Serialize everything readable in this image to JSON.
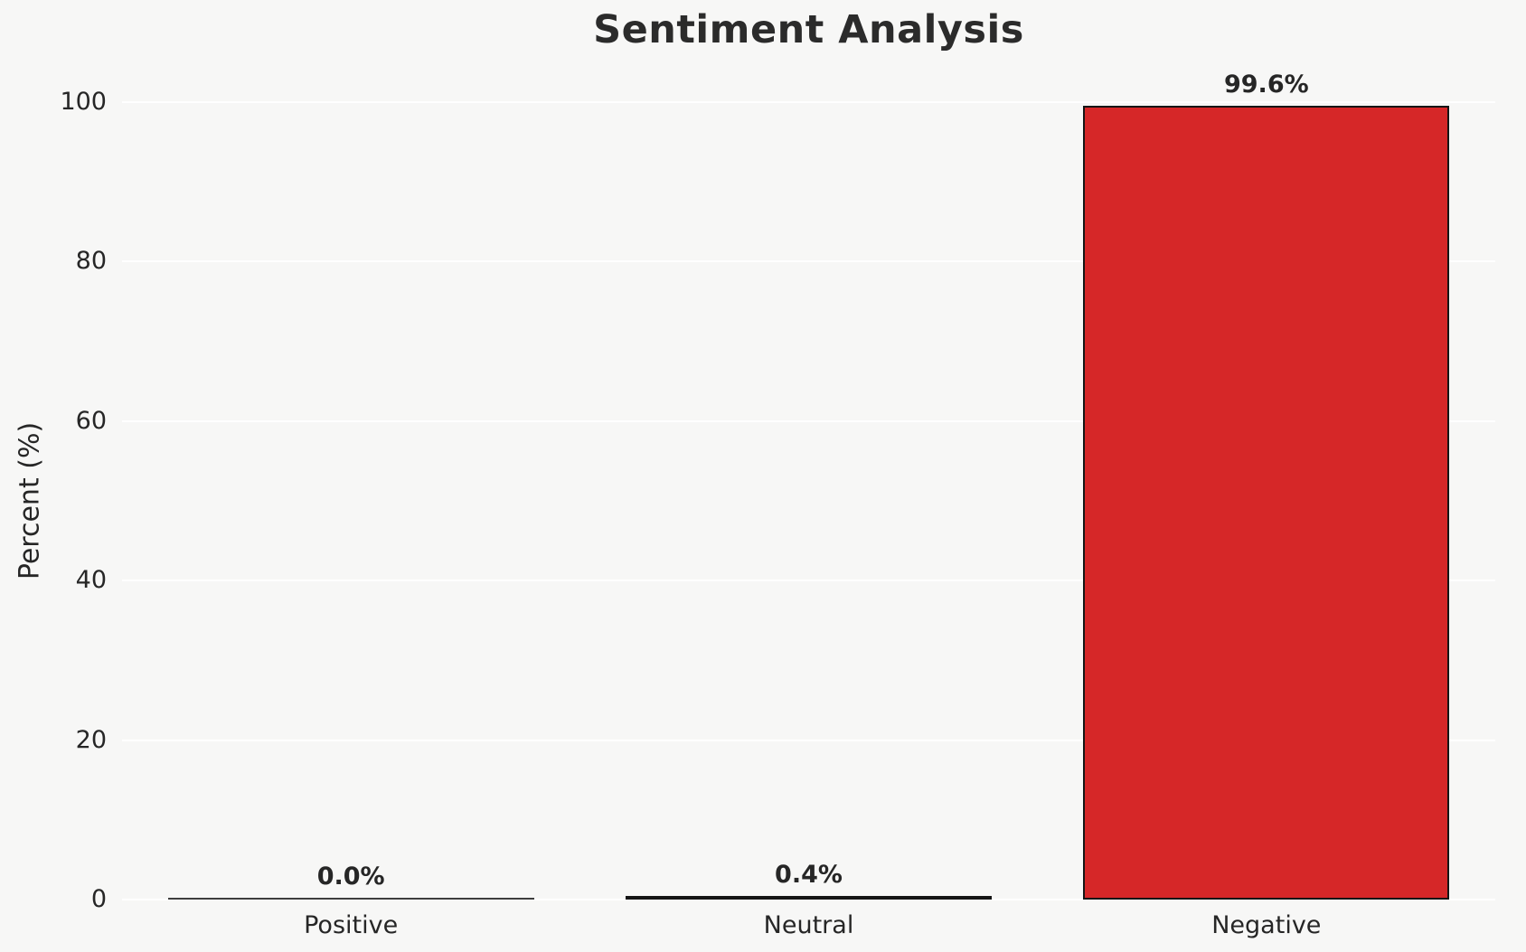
{
  "chart_data": {
    "type": "bar",
    "title": "Sentiment Analysis",
    "xlabel": "",
    "ylabel": "Percent (%)",
    "categories": [
      "Positive",
      "Neutral",
      "Negative"
    ],
    "values": [
      0.0,
      0.4,
      99.6
    ],
    "value_labels": [
      "0.0%",
      "0.4%",
      "99.6%"
    ],
    "yticks": [
      0,
      20,
      40,
      60,
      80,
      100
    ],
    "ylim": [
      0,
      100
    ],
    "grid": true,
    "legend": false,
    "bar_colors": [
      "#3d3d3d",
      "#151515",
      "#d62728"
    ],
    "bar_edge_color": "#151515",
    "background_color": "#f7f7f6",
    "grid_color": "#ffffff",
    "text_color": "#262626"
  }
}
